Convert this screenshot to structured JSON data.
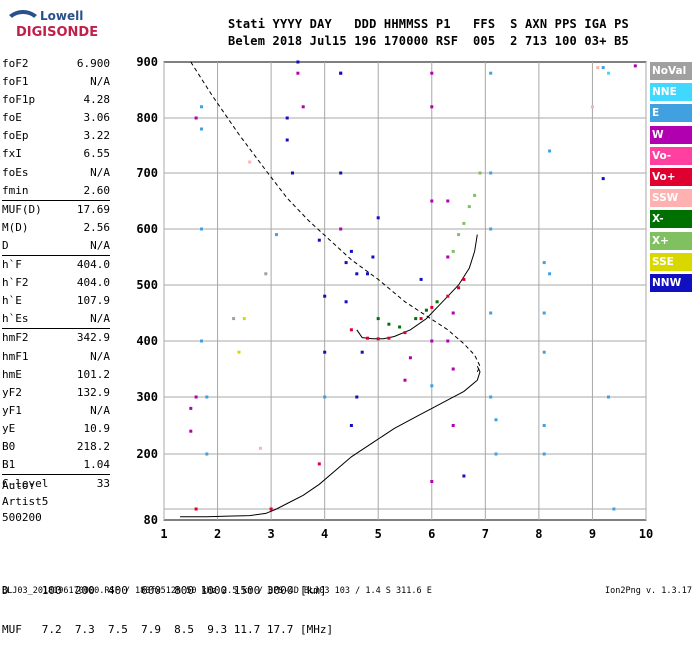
{
  "logo": {
    "line1": "Lowell",
    "line2": "DIGISONDE"
  },
  "header": {
    "row1": "Stati YYYY DAY   DDD HHMMSS P1   FFS  S AXN PPS IGA PS",
    "row2": "Belem 2018 Jul15 196 170000 RSF  005  2 713 100 03+ B5"
  },
  "params": [
    {
      "name": "foF2",
      "value": "6.900"
    },
    {
      "name": "foF1",
      "value": "N/A"
    },
    {
      "name": "foF1p",
      "value": "4.28"
    },
    {
      "name": "foE",
      "value": "3.06"
    },
    {
      "name": "foEp",
      "value": "3.22"
    },
    {
      "name": "fxI",
      "value": "6.55"
    },
    {
      "name": "foEs",
      "value": "N/A"
    },
    {
      "name": "fmin",
      "value": "2.60"
    },
    {
      "name": "MUF(D)",
      "value": "17.69"
    },
    {
      "name": "M(D)",
      "value": "2.56"
    },
    {
      "name": "D",
      "value": "N/A"
    },
    {
      "name": "h`F",
      "value": "404.0"
    },
    {
      "name": "h`F2",
      "value": "404.0"
    },
    {
      "name": "h`E",
      "value": "107.9"
    },
    {
      "name": "h`Es",
      "value": "N/A"
    },
    {
      "name": "hmF2",
      "value": "342.9"
    },
    {
      "name": "hmF1",
      "value": "N/A"
    },
    {
      "name": "hmE",
      "value": "101.2"
    },
    {
      "name": "yF2",
      "value": "132.9"
    },
    {
      "name": "yF1",
      "value": "N/A"
    },
    {
      "name": "yE",
      "value": "10.9"
    },
    {
      "name": "B0",
      "value": "218.2"
    },
    {
      "name": "B1",
      "value": "1.04"
    },
    {
      "name": "C-level",
      "value": "33"
    }
  ],
  "auto": {
    "line1": "Auto:",
    "line2": "Artist5",
    "line3": "500200"
  },
  "legend": [
    {
      "label": "NoVal",
      "color": "#a0a0a0"
    },
    {
      "label": "NNE",
      "color": "#40d8ff"
    },
    {
      "label": "E",
      "color": "#40a0e0"
    },
    {
      "label": "W",
      "color": "#b000b0"
    },
    {
      "label": "Vo-",
      "color": "#ff40a0"
    },
    {
      "label": "Vo+",
      "color": "#e00030"
    },
    {
      "label": "SSW",
      "color": "#ffb0b0"
    },
    {
      "label": "X-",
      "color": "#007000"
    },
    {
      "label": "X+",
      "color": "#80c060"
    },
    {
      "label": "SSE",
      "color": "#d8d800"
    },
    {
      "label": "NNW",
      "color": "#1010c0"
    }
  ],
  "bottom": {
    "row_d": "D     100  200  400  600  800 1000 1500 3000 [km]",
    "row_muf": "MUF   7.2  7.3  7.5  7.9  8.5  9.3 11.7 17.7 [MHz]"
  },
  "footer": {
    "left": "BLJ03_2018196170000.RSF / 180fx512h 50 kHz 2.5 km / DPS-4D BLJ03 103 / 1.4 S 311.6 E",
    "right": "Ion2Png v. 1.3.17"
  },
  "chart_data": {
    "type": "scatter",
    "xlim": [
      1,
      10
    ],
    "ylim": [
      80,
      900
    ],
    "xticks": [
      "1",
      "2",
      "3",
      "4",
      "5",
      "6",
      "7",
      "8",
      "9",
      "10"
    ],
    "yticks": [
      "80",
      "200",
      "300",
      "400",
      "500",
      "600",
      "700",
      "800",
      "900"
    ],
    "grid": true,
    "series": [
      {
        "name": "profile-curve",
        "color": "#000000",
        "x": [
          1.3,
          1.8,
          2.2,
          2.6,
          2.9,
          3.1,
          3.3,
          3.6,
          3.9,
          4.2,
          4.5,
          4.9,
          5.3,
          5.7,
          6.0,
          6.3,
          6.6,
          6.85,
          6.9,
          6.85
        ],
        "y": [
          86,
          86,
          87,
          88,
          92,
          100,
          110,
          125,
          145,
          170,
          195,
          220,
          245,
          265,
          280,
          295,
          310,
          330,
          345,
          355
        ]
      },
      {
        "name": "trace-dashed",
        "color": "#000000",
        "dashed": true,
        "x": [
          1.5,
          1.9,
          2.4,
          2.9,
          3.3,
          3.7,
          4.1,
          4.5,
          5.0,
          5.5,
          5.9,
          6.3,
          6.6,
          6.8,
          6.9,
          6.85
        ],
        "y": [
          900,
          840,
          770,
          705,
          655,
          615,
          580,
          545,
          510,
          470,
          445,
          420,
          395,
          375,
          355,
          345
        ]
      },
      {
        "name": "virtual-height-F",
        "color": "#000000",
        "x": [
          4.6,
          4.7,
          4.9,
          5.1,
          5.3,
          5.6,
          5.9,
          6.2,
          6.5,
          6.7,
          6.8,
          6.85
        ],
        "y": [
          420,
          406,
          404,
          404,
          408,
          420,
          440,
          470,
          500,
          530,
          560,
          590
        ]
      },
      {
        "name": "W",
        "color": "#b000b0",
        "x": [
          1.5,
          1.5,
          1.6,
          1.6,
          3.5,
          3.6,
          4.3,
          4.3,
          5.5,
          5.6,
          6.0,
          6.0,
          6.0,
          6.0,
          6.0,
          6.3,
          6.3,
          6.3,
          6.4,
          6.4,
          6.4,
          9.8
        ],
        "y": [
          280,
          240,
          800,
          300,
          880,
          820,
          880,
          600,
          330,
          370,
          880,
          820,
          650,
          400,
          150,
          650,
          550,
          400,
          450,
          350,
          250,
          893
        ]
      },
      {
        "name": "NNW",
        "color": "#1010c0",
        "x": [
          3.3,
          3.3,
          3.4,
          3.5,
          3.9,
          4.0,
          4.0,
          4.3,
          4.3,
          4.4,
          4.4,
          4.5,
          4.5,
          4.6,
          4.6,
          4.7,
          4.8,
          5.0,
          4.9,
          5.8,
          6.6,
          9.2
        ],
        "y": [
          800,
          760,
          700,
          900,
          580,
          480,
          380,
          880,
          700,
          540,
          470,
          560,
          250,
          300,
          520,
          380,
          520,
          620,
          550,
          510,
          160,
          690
        ]
      },
      {
        "name": "E",
        "color": "#40a0e0",
        "x": [
          1.7,
          1.7,
          1.7,
          1.7,
          1.8,
          1.8,
          3.1,
          4.0,
          6.0,
          7.1,
          7.1,
          7.1,
          7.1,
          7.1,
          7.2,
          7.2,
          8.1,
          8.1,
          8.1,
          8.1,
          8.1,
          8.2,
          8.2,
          9.2,
          9.3,
          9.4
        ],
        "y": [
          820,
          780,
          600,
          400,
          300,
          200,
          590,
          300,
          320,
          880,
          700,
          600,
          450,
          300,
          260,
          200,
          540,
          450,
          380,
          250,
          200,
          740,
          520,
          890,
          300,
          100
        ]
      },
      {
        "name": "Vo+",
        "color": "#e00030",
        "x": [
          1.6,
          3.0,
          3.9,
          4.5,
          4.8,
          5.0,
          5.2,
          5.5,
          5.8,
          6.0,
          6.3,
          6.5,
          6.6
        ],
        "y": [
          100,
          100,
          182,
          420,
          405,
          404,
          405,
          415,
          440,
          460,
          480,
          495,
          510
        ]
      },
      {
        "name": "X-",
        "color": "#007000",
        "x": [
          5.0,
          5.2,
          5.4,
          5.7,
          5.9,
          6.1
        ],
        "y": [
          440,
          430,
          425,
          440,
          455,
          470
        ]
      },
      {
        "name": "X+",
        "color": "#80c060",
        "x": [
          6.4,
          6.5,
          6.6,
          6.7,
          6.8,
          6.9
        ],
        "y": [
          560,
          590,
          610,
          640,
          660,
          700
        ]
      },
      {
        "name": "NNE",
        "color": "#40d8ff",
        "x": [
          9.3
        ],
        "y": [
          880
        ]
      },
      {
        "name": "SSW",
        "color": "#ffb0b0",
        "x": [
          2.6,
          2.8,
          9.0,
          9.1
        ],
        "y": [
          720,
          210,
          820,
          890
        ]
      },
      {
        "name": "SSE",
        "color": "#d8d800",
        "x": [
          2.4,
          2.5
        ],
        "y": [
          380,
          440
        ]
      },
      {
        "name": "NoVal",
        "color": "#a0a0a0",
        "x": [
          2.3,
          2.9
        ],
        "y": [
          440,
          520
        ]
      }
    ]
  }
}
